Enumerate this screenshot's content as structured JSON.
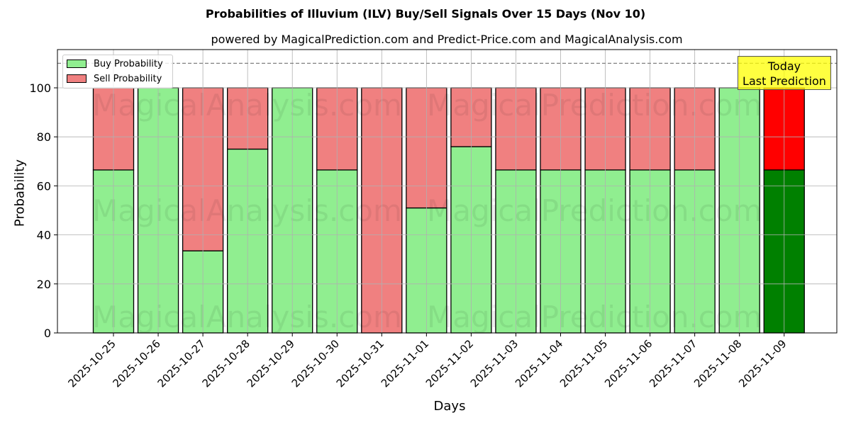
{
  "header": {
    "title": "Probabilities of Illuvium (ILV) Buy/Sell Signals Over 15 Days (Nov 10)",
    "subtitle": "powered by MagicalPrediction.com and Predict-Price.com and MagicalAnalysis.com"
  },
  "legend": {
    "buy_label": "Buy Probability",
    "sell_label": "Sell Probability"
  },
  "annotation": {
    "line1": "Today",
    "line2": "Last Prediction"
  },
  "axes": {
    "xlabel": "Days",
    "ylabel": "Probability",
    "yticks": [
      "0",
      "20",
      "40",
      "60",
      "80",
      "100"
    ]
  },
  "watermark": {
    "left": "MagicalAnalysis.com",
    "right": "MagicalPrediction.com"
  },
  "colors": {
    "buy": "#90ee90",
    "sell": "#f08080",
    "today_buy": "#008000",
    "today_sell": "#ff0000",
    "annotation_bg": "#ffff00"
  },
  "chart_data": {
    "type": "bar",
    "stacked": true,
    "title": "Probabilities of Illuvium (ILV) Buy/Sell Signals Over 15 Days (Nov 10)",
    "subtitle": "powered by MagicalPrediction.com and Predict-Price.com and MagicalAnalysis.com",
    "xlabel": "Days",
    "ylabel": "Probability",
    "ylim": [
      0,
      115
    ],
    "yticks": [
      0,
      20,
      40,
      60,
      80,
      100
    ],
    "grid": true,
    "legend_position": "upper left",
    "reference_line": {
      "y": 110,
      "style": "dashed",
      "color": "#808080"
    },
    "categories": [
      "2025-10-25",
      "2025-10-26",
      "2025-10-27",
      "2025-10-28",
      "2025-10-29",
      "2025-10-30",
      "2025-10-31",
      "2025-11-01",
      "2025-11-02",
      "2025-11-03",
      "2025-11-04",
      "2025-11-05",
      "2025-11-06",
      "2025-11-07",
      "2025-11-08",
      "2025-11-09"
    ],
    "series": [
      {
        "name": "Buy Probability",
        "values": [
          66.5,
          100,
          33.5,
          75,
          100,
          66.5,
          0,
          51,
          76,
          66.5,
          66.5,
          66.5,
          66.5,
          66.5,
          100,
          66.5
        ]
      },
      {
        "name": "Sell Probability",
        "values": [
          33.5,
          0,
          66.5,
          25,
          0,
          33.5,
          100,
          49,
          24,
          33.5,
          33.5,
          33.5,
          33.5,
          33.5,
          0,
          33.5
        ]
      }
    ],
    "annotations": [
      {
        "text": "Today\nLast Prediction",
        "x": "2025-11-09"
      }
    ]
  }
}
